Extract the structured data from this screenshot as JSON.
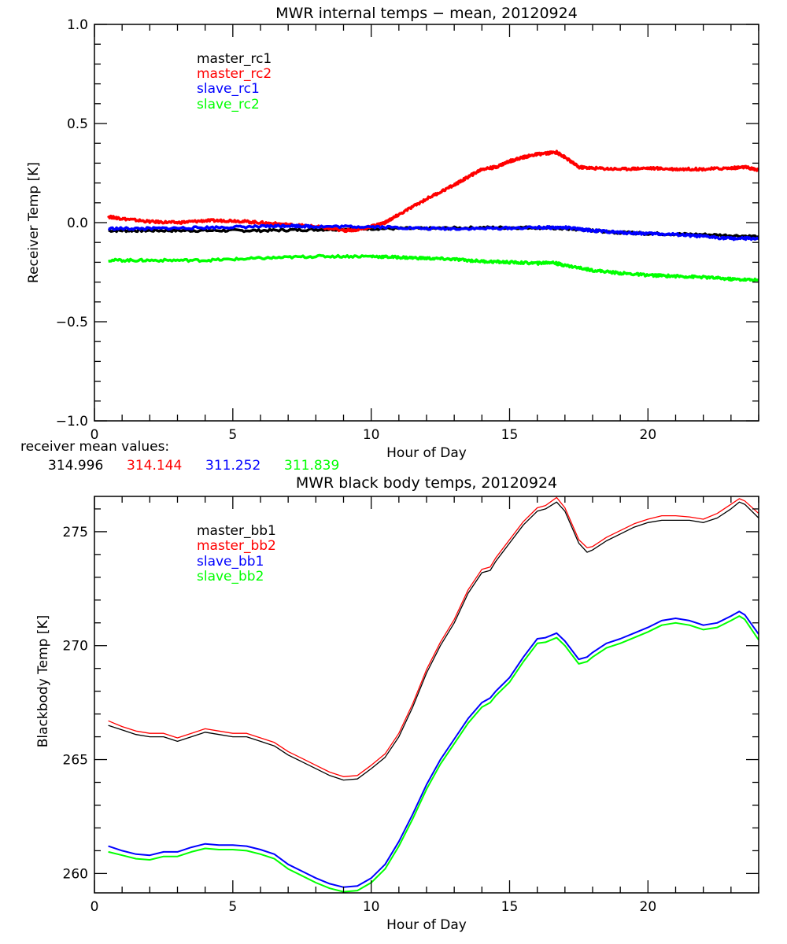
{
  "chart_data": [
    {
      "type": "line",
      "title": "MWR internal temps − mean, 20120924",
      "xlabel": "Hour of Day",
      "ylabel": "Receiver Temp [K]",
      "xlim": [
        0,
        24
      ],
      "ylim": [
        -1.0,
        1.0
      ],
      "xticks": [
        "0",
        "5",
        "10",
        "15",
        "20"
      ],
      "yticks": [
        "−1.0",
        "−0.5",
        "0.0",
        "0.5",
        "1.0"
      ],
      "ytick_values": [
        -1.0,
        -0.5,
        0.0,
        0.5,
        1.0
      ],
      "xtick_values": [
        0,
        5,
        10,
        15,
        20
      ],
      "grid": false,
      "legend_position": "top-left-inset",
      "series": [
        {
          "name": "master_rc1",
          "color": "#000000",
          "x": [
            0.5,
            2,
            4,
            6,
            8,
            10,
            12,
            14,
            16,
            17,
            18,
            19,
            20,
            22,
            24
          ],
          "y": [
            -0.04,
            -0.04,
            -0.04,
            -0.04,
            -0.035,
            -0.03,
            -0.03,
            -0.025,
            -0.025,
            -0.03,
            -0.04,
            -0.05,
            -0.055,
            -0.06,
            -0.07
          ]
        },
        {
          "name": "master_rc2",
          "color": "#ff0000",
          "x": [
            0.5,
            1,
            2,
            3,
            4,
            5,
            6,
            7,
            8,
            9,
            9.5,
            10,
            10.5,
            11,
            12,
            13,
            13.5,
            14,
            14.5,
            15,
            15.5,
            16,
            16.7,
            17,
            17.5,
            18,
            19,
            20,
            21,
            22,
            23,
            23.5,
            24
          ],
          "y": [
            0.03,
            0.02,
            0.005,
            0.0,
            0.01,
            0.01,
            0.0,
            -0.01,
            -0.02,
            -0.04,
            -0.035,
            -0.02,
            0.0,
            0.04,
            0.12,
            0.19,
            0.23,
            0.27,
            0.28,
            0.31,
            0.33,
            0.345,
            0.355,
            0.33,
            0.28,
            0.275,
            0.27,
            0.275,
            0.27,
            0.27,
            0.275,
            0.28,
            0.265
          ]
        },
        {
          "name": "slave_rc1",
          "color": "#0000ff",
          "x": [
            0.5,
            2,
            4,
            6,
            7,
            8,
            10,
            12,
            14,
            16,
            17,
            18,
            19,
            20,
            21,
            22,
            23,
            24
          ],
          "y": [
            -0.03,
            -0.03,
            -0.025,
            -0.02,
            -0.015,
            -0.02,
            -0.02,
            -0.03,
            -0.03,
            -0.025,
            -0.025,
            -0.04,
            -0.05,
            -0.055,
            -0.06,
            -0.07,
            -0.08,
            -0.08
          ]
        },
        {
          "name": "slave_rc2",
          "color": "#00ff00",
          "x": [
            0.5,
            2,
            4,
            6,
            8,
            10,
            11,
            12,
            13,
            14,
            15,
            16,
            16.5,
            17,
            18,
            19,
            20,
            21,
            22,
            23,
            24
          ],
          "y": [
            -0.19,
            -0.19,
            -0.19,
            -0.18,
            -0.17,
            -0.17,
            -0.175,
            -0.18,
            -0.185,
            -0.195,
            -0.2,
            -0.205,
            -0.2,
            -0.215,
            -0.24,
            -0.255,
            -0.265,
            -0.27,
            -0.275,
            -0.285,
            -0.29
          ]
        }
      ]
    },
    {
      "type": "line",
      "title": "MWR black body temps, 20120924",
      "xlabel": "Hour of Day",
      "ylabel": "Blackbody Temp [K]",
      "xlim": [
        0,
        24
      ],
      "ylim": [
        259.15,
        276.55
      ],
      "xticks": [
        "0",
        "5",
        "10",
        "15",
        "20"
      ],
      "xtick_values": [
        0,
        5,
        10,
        15,
        20
      ],
      "yticks": [
        "260",
        "265",
        "270",
        "275"
      ],
      "ytick_values": [
        260,
        265,
        270,
        275
      ],
      "grid": false,
      "legend_position": "top-left-inset",
      "series": [
        {
          "name": "master_bb1",
          "color": "#000000",
          "x": [
            0.5,
            1,
            1.5,
            2,
            2.5,
            3,
            3.5,
            4,
            4.5,
            5,
            5.5,
            6,
            6.5,
            7,
            7.5,
            8,
            8.5,
            9,
            9.5,
            10,
            10.5,
            11,
            11.5,
            12,
            12.5,
            13,
            13.5,
            14,
            14.3,
            14.5,
            15,
            15.5,
            16,
            16.3,
            16.7,
            17,
            17.5,
            17.8,
            18,
            18.5,
            19,
            19.5,
            20,
            20.5,
            21,
            21.5,
            22,
            22.5,
            23,
            23.3,
            23.5,
            24
          ],
          "y": [
            266.5,
            266.3,
            266.1,
            266.0,
            266.0,
            265.8,
            266.0,
            266.2,
            266.1,
            266.0,
            266.0,
            265.8,
            265.6,
            265.2,
            264.9,
            264.6,
            264.3,
            264.1,
            264.15,
            264.6,
            265.1,
            266.0,
            267.3,
            268.8,
            270.0,
            271.0,
            272.3,
            273.2,
            273.3,
            273.7,
            274.5,
            275.3,
            275.9,
            276.0,
            276.3,
            275.9,
            274.5,
            274.1,
            274.2,
            274.6,
            274.9,
            275.2,
            275.4,
            275.5,
            275.5,
            275.5,
            275.4,
            275.6,
            276.0,
            276.3,
            276.2,
            275.6
          ]
        },
        {
          "name": "master_bb2",
          "color": "#ff0000",
          "x": [
            0.5,
            1,
            1.5,
            2,
            2.5,
            3,
            3.5,
            4,
            4.5,
            5,
            5.5,
            6,
            6.5,
            7,
            7.5,
            8,
            8.5,
            9,
            9.5,
            10,
            10.5,
            11,
            11.5,
            12,
            12.5,
            13,
            13.5,
            14,
            14.3,
            14.5,
            15,
            15.5,
            16,
            16.3,
            16.7,
            17,
            17.5,
            17.8,
            18,
            18.5,
            19,
            19.5,
            20,
            20.5,
            21,
            21.5,
            22,
            22.5,
            23,
            23.3,
            23.5,
            24
          ],
          "y": [
            266.7,
            266.45,
            266.25,
            266.15,
            266.15,
            265.95,
            266.15,
            266.35,
            266.25,
            266.15,
            266.15,
            265.95,
            265.75,
            265.35,
            265.05,
            264.75,
            264.45,
            264.25,
            264.3,
            264.75,
            265.25,
            266.15,
            267.45,
            268.95,
            270.15,
            271.15,
            272.45,
            273.35,
            273.45,
            273.85,
            274.65,
            275.45,
            276.05,
            276.15,
            276.5,
            276.05,
            274.65,
            274.3,
            274.35,
            274.75,
            275.05,
            275.35,
            275.55,
            275.7,
            275.7,
            275.65,
            275.55,
            275.8,
            276.2,
            276.45,
            276.35,
            275.8
          ]
        },
        {
          "name": "slave_bb1",
          "color": "#0000ff",
          "x": [
            0.5,
            1,
            1.5,
            2,
            2.5,
            3,
            3.5,
            4,
            4.5,
            5,
            5.5,
            6,
            6.5,
            7,
            7.5,
            8,
            8.5,
            9,
            9.5,
            10,
            10.5,
            11,
            11.5,
            12,
            12.5,
            13,
            13.5,
            14,
            14.3,
            14.5,
            15,
            15.5,
            16,
            16.3,
            16.7,
            17,
            17.5,
            17.8,
            18,
            18.5,
            19,
            19.5,
            20,
            20.5,
            21,
            21.5,
            22,
            22.5,
            23,
            23.3,
            23.5,
            24
          ],
          "y": [
            261.2,
            261.0,
            260.85,
            260.8,
            260.95,
            260.95,
            261.15,
            261.3,
            261.25,
            261.25,
            261.2,
            261.05,
            260.85,
            260.4,
            260.1,
            259.8,
            259.55,
            259.4,
            259.45,
            259.8,
            260.4,
            261.4,
            262.6,
            263.9,
            265.0,
            265.9,
            266.8,
            267.5,
            267.7,
            268.0,
            268.6,
            269.5,
            270.3,
            270.35,
            270.55,
            270.2,
            269.4,
            269.5,
            269.7,
            270.1,
            270.3,
            270.55,
            270.8,
            271.1,
            271.2,
            271.1,
            270.9,
            271.0,
            271.3,
            271.5,
            271.35,
            270.5
          ]
        },
        {
          "name": "slave_bb2",
          "color": "#00ff00",
          "x": [
            0.5,
            1,
            1.5,
            2,
            2.5,
            3,
            3.5,
            4,
            4.5,
            5,
            5.5,
            6,
            6.5,
            7,
            7.5,
            8,
            8.5,
            9,
            9.5,
            10,
            10.5,
            11,
            11.5,
            12,
            12.5,
            13,
            13.5,
            14,
            14.3,
            14.5,
            15,
            15.5,
            16,
            16.3,
            16.7,
            17,
            17.5,
            17.8,
            18,
            18.5,
            19,
            19.5,
            20,
            20.5,
            21,
            21.5,
            22,
            22.5,
            23,
            23.3,
            23.5,
            24
          ],
          "y": [
            260.95,
            260.8,
            260.65,
            260.6,
            260.75,
            260.75,
            260.95,
            261.1,
            261.05,
            261.05,
            261.0,
            260.85,
            260.65,
            260.2,
            259.9,
            259.6,
            259.35,
            259.2,
            259.25,
            259.6,
            260.2,
            261.2,
            262.4,
            263.7,
            264.8,
            265.7,
            266.6,
            267.3,
            267.5,
            267.8,
            268.4,
            269.3,
            270.1,
            270.15,
            270.35,
            270.0,
            269.2,
            269.3,
            269.5,
            269.9,
            270.1,
            270.35,
            270.6,
            270.9,
            271.0,
            270.9,
            270.7,
            270.8,
            271.1,
            271.3,
            271.15,
            270.25
          ]
        }
      ]
    }
  ],
  "receiver_mean": {
    "label": "receiver mean values:",
    "values": [
      {
        "text": "314.996",
        "color": "#000000"
      },
      {
        "text": "314.144",
        "color": "#ff0000"
      },
      {
        "text": "311.252",
        "color": "#0000ff"
      },
      {
        "text": "311.839",
        "color": "#00ff00"
      }
    ]
  }
}
